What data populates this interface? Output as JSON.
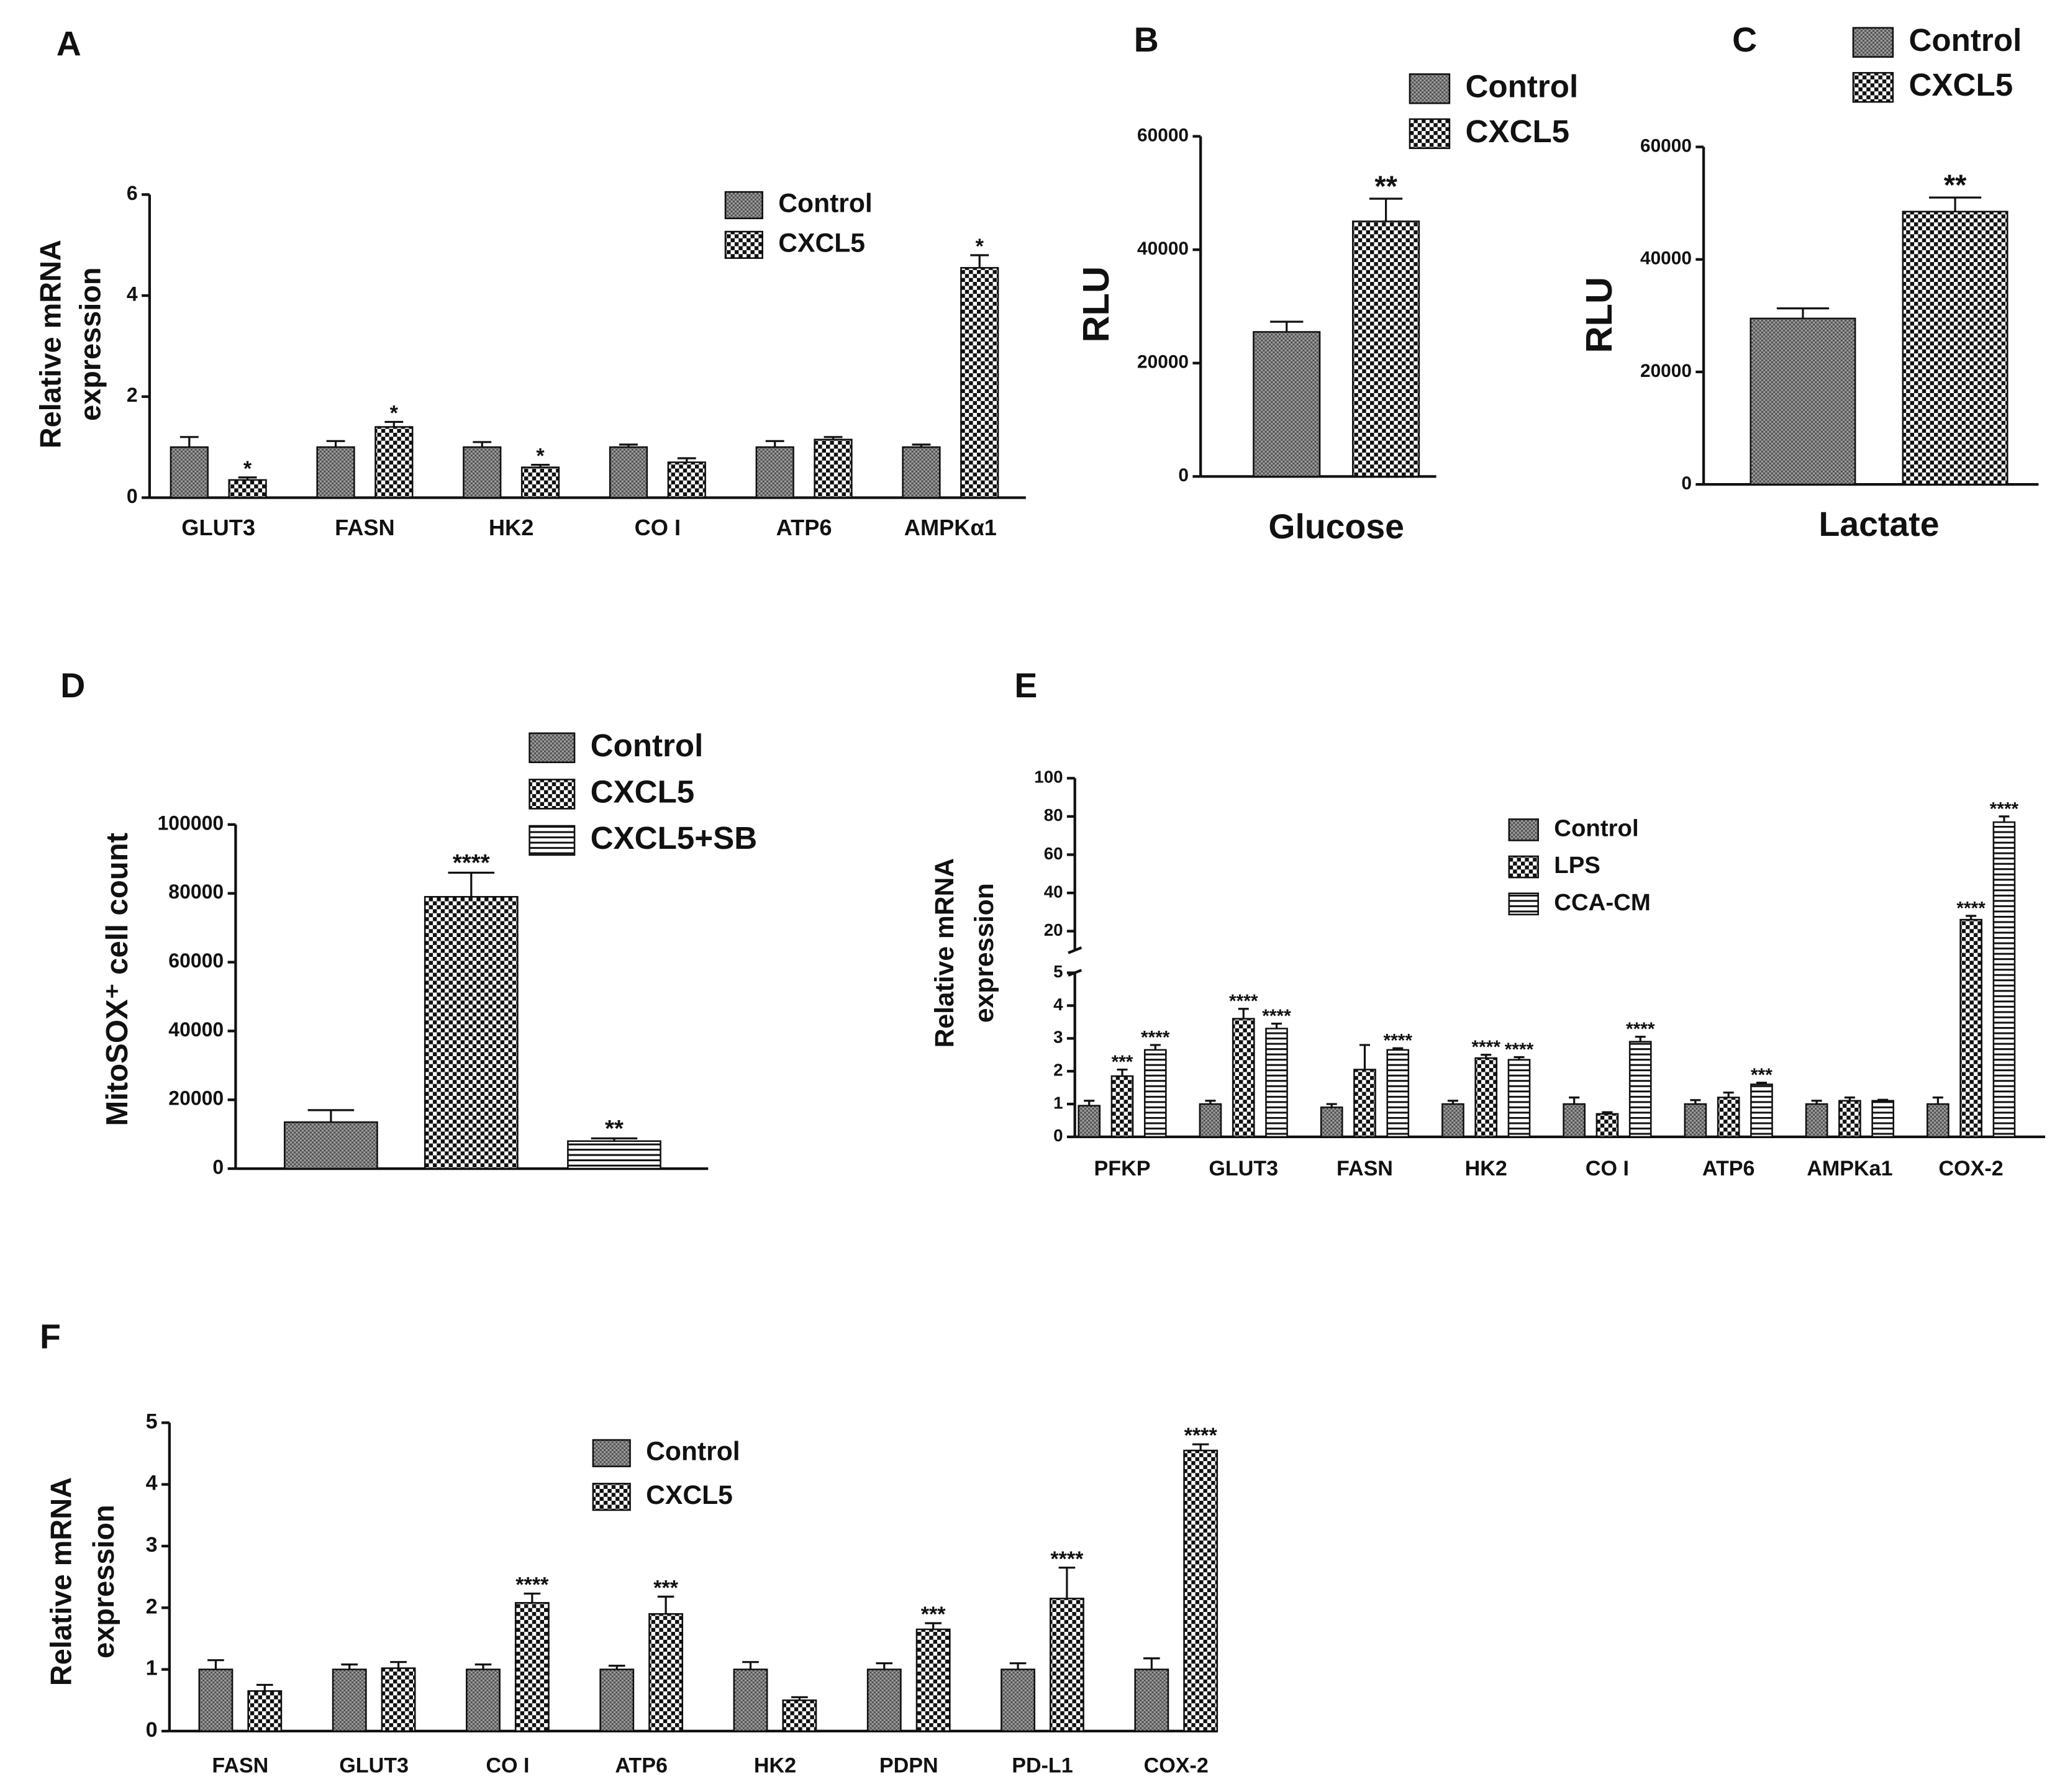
{
  "chart_data": [
    {
      "type": "bar",
      "panel": "A",
      "ylabel": [
        "Relative mRNA",
        "expression"
      ],
      "categories": [
        "GLUT3",
        "FASN",
        "HK2",
        "CO I",
        "ATP6",
        "AMPKα1"
      ],
      "series": [
        {
          "name": "Control",
          "pattern": "dots",
          "values": [
            1,
            1,
            1,
            1,
            1,
            1
          ],
          "errors": [
            0.2,
            0.12,
            0.1,
            0.05,
            0.12,
            0.05
          ],
          "significance": [
            null,
            null,
            null,
            null,
            null,
            null
          ]
        },
        {
          "name": "CXCL5",
          "pattern": "checker",
          "values": [
            0.35,
            1.4,
            0.6,
            0.7,
            1.15,
            4.55
          ],
          "errors": [
            0.05,
            0.1,
            0.05,
            0.08,
            0.05,
            0.25
          ],
          "significance": [
            "*",
            "*",
            "*",
            null,
            null,
            "*"
          ]
        }
      ],
      "ylim": [
        0,
        6
      ],
      "yticks": [
        0,
        2,
        4,
        6
      ]
    },
    {
      "type": "bar",
      "panel": "B",
      "ylabel": [
        "RLU"
      ],
      "categories": [
        "Glucose"
      ],
      "series": [
        {
          "name": "Control",
          "pattern": "dots",
          "values": [
            25500
          ],
          "errors": [
            1800
          ],
          "significance": [
            null
          ]
        },
        {
          "name": "CXCL5",
          "pattern": "checker",
          "values": [
            45000
          ],
          "errors": [
            4000
          ],
          "significance": [
            "**"
          ]
        }
      ],
      "ylim": [
        0,
        60000
      ],
      "yticks": [
        0,
        20000,
        40000,
        60000
      ]
    },
    {
      "type": "bar",
      "panel": "C",
      "ylabel": [
        "RLU"
      ],
      "categories": [
        "Lactate"
      ],
      "series": [
        {
          "name": "Control",
          "pattern": "dots",
          "values": [
            29500
          ],
          "errors": [
            1800
          ],
          "significance": [
            null
          ]
        },
        {
          "name": "CXCL5",
          "pattern": "checker",
          "values": [
            48500
          ],
          "errors": [
            2500
          ],
          "significance": [
            "**"
          ]
        }
      ],
      "ylim": [
        0,
        60000
      ],
      "yticks": [
        0,
        20000,
        40000,
        60000
      ]
    },
    {
      "type": "bar",
      "panel": "D",
      "ylabel": [
        "MitoSOX⁺ cell count"
      ],
      "categories": [
        null
      ],
      "series": [
        {
          "name": "Control",
          "pattern": "dots",
          "values": [
            13500
          ],
          "errors": [
            3500
          ],
          "significance": [
            null
          ]
        },
        {
          "name": "CXCL5",
          "pattern": "checker",
          "values": [
            79000
          ],
          "errors": [
            7000
          ],
          "significance": [
            "****"
          ]
        },
        {
          "name": "CXCL5+SB",
          "pattern": "stripes",
          "values": [
            8000
          ],
          "errors": [
            800
          ],
          "significance": [
            "**"
          ]
        }
      ],
      "ylim": [
        0,
        100000
      ],
      "yticks": [
        0,
        20000,
        40000,
        60000,
        80000,
        100000
      ]
    },
    {
      "type": "bar",
      "panel": "E",
      "ylabel": [
        "Relative mRNA",
        "expression"
      ],
      "categories": [
        "PFKP",
        "GLUT3",
        "FASN",
        "HK2",
        "CO I",
        "ATP6",
        "AMPKa1",
        "COX-2"
      ],
      "series": [
        {
          "name": "Control",
          "pattern": "dots",
          "values": [
            0.95,
            1,
            0.9,
            1,
            1,
            1,
            1,
            1
          ],
          "errors": [
            0.15,
            0.1,
            0.1,
            0.1,
            0.2,
            0.12,
            0.1,
            0.2
          ],
          "significance": [
            null,
            null,
            null,
            null,
            null,
            null,
            null,
            null
          ]
        },
        {
          "name": "LPS",
          "pattern": "checker",
          "values": [
            1.85,
            3.6,
            2.05,
            2.4,
            0.7,
            1.2,
            1.1,
            26
          ],
          "errors": [
            0.2,
            0.3,
            0.75,
            0.1,
            0.05,
            0.15,
            0.1,
            2
          ],
          "significance": [
            "***",
            "****",
            null,
            "****",
            null,
            null,
            null,
            "****"
          ]
        },
        {
          "name": "CCA-CM",
          "pattern": "stripes",
          "values": [
            2.65,
            3.3,
            2.65,
            2.35,
            2.9,
            1.6,
            1.1,
            77
          ],
          "errors": [
            0.15,
            0.15,
            0.05,
            0.08,
            0.15,
            0.05,
            0.03,
            3
          ],
          "significance": [
            "****",
            "****",
            "****",
            "****",
            "****",
            "***",
            null,
            "****"
          ]
        }
      ],
      "ylim": [
        0,
        100
      ],
      "ybreak": [
        5,
        10
      ],
      "yticks": [
        0,
        1,
        2,
        3,
        4,
        5,
        20,
        40,
        60,
        80,
        100
      ]
    },
    {
      "type": "bar",
      "panel": "F",
      "ylabel": [
        "Relative mRNA",
        "expression"
      ],
      "categories": [
        "FASN",
        "GLUT3",
        "CO I",
        "ATP6",
        "HK2",
        "PDPN",
        "PD-L1",
        "COX-2"
      ],
      "series": [
        {
          "name": "Control",
          "pattern": "dots",
          "values": [
            1,
            1,
            1,
            1,
            1,
            1,
            1,
            1
          ],
          "errors": [
            0.15,
            0.08,
            0.08,
            0.06,
            0.12,
            0.1,
            0.1,
            0.18
          ],
          "significance": [
            null,
            null,
            null,
            null,
            null,
            null,
            null,
            null
          ]
        },
        {
          "name": "CXCL5",
          "pattern": "checker",
          "values": [
            0.65,
            1.02,
            2.08,
            1.9,
            0.5,
            1.65,
            2.15,
            4.55
          ],
          "errors": [
            0.1,
            0.1,
            0.15,
            0.28,
            0.05,
            0.1,
            0.5,
            0.1
          ],
          "significance": [
            null,
            null,
            "****",
            "***",
            null,
            "***",
            "****",
            "****"
          ]
        }
      ],
      "ylim": [
        0,
        5
      ],
      "yticks": [
        0,
        1,
        2,
        3,
        4,
        5
      ]
    }
  ]
}
